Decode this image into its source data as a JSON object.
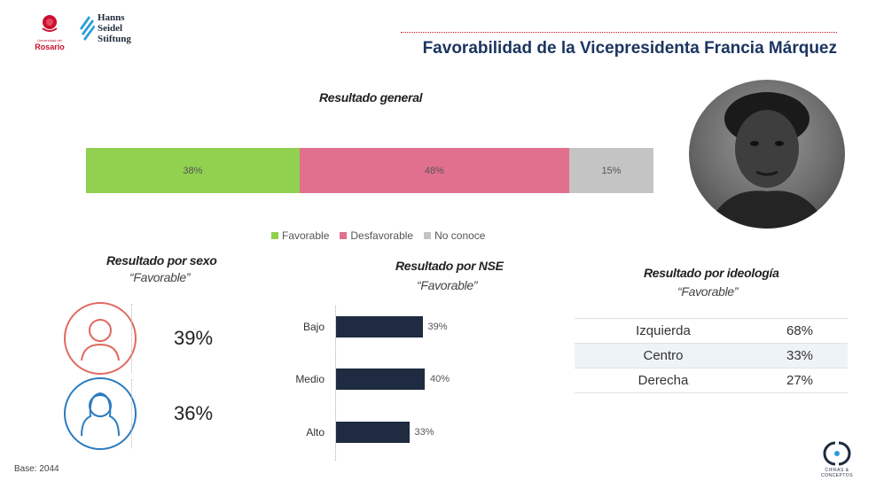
{
  "header": {
    "logo_rosario_small": "Universidad del",
    "logo_rosario_big": "Rosario",
    "logo_hss_lines": [
      "Hanns",
      "Seidel",
      "Stiftung"
    ],
    "title": "Favorabilidad de la Vicepresidenta Francia Márquez",
    "accent_color": "#c8102e",
    "title_color": "#1c3560"
  },
  "general": {
    "title": "Resultado general"
  },
  "sexo": {
    "title": "Resultado por sexo",
    "subtitle": "“Favorable”"
  },
  "nse": {
    "title": "Resultado por NSE",
    "subtitle": "“Favorable”"
  },
  "ideologia": {
    "title": "Resultado por ideología",
    "subtitle": "“Favorable”"
  },
  "chart_data": [
    {
      "type": "bar",
      "stacked": true,
      "orientation": "horizontal",
      "title": "Resultado general",
      "series": [
        {
          "name": "Favorable",
          "value": 38,
          "label": "38%",
          "color": "#92d050"
        },
        {
          "name": "Desfavorable",
          "value": 48,
          "label": "48%",
          "color": "#e0708e"
        },
        {
          "name": "No conoce",
          "value": 15,
          "label": "15%",
          "color": "#c4c4c4"
        }
      ],
      "legend": "bottom-center"
    },
    {
      "type": "table",
      "title": "Resultado por sexo",
      "categories": [
        "male-icon",
        "female-icon"
      ],
      "values": [
        39,
        36
      ],
      "labels": [
        "39%",
        "36%"
      ],
      "colors": [
        "#e06a60",
        "#2a7bbf"
      ]
    },
    {
      "type": "bar",
      "orientation": "horizontal",
      "title": "Resultado por NSE",
      "categories": [
        "Bajo",
        "Medio",
        "Alto"
      ],
      "values": [
        39,
        40,
        33
      ],
      "labels": [
        "39%",
        "40%",
        "33%"
      ],
      "color": "#1e2b40",
      "grid": false
    },
    {
      "type": "table",
      "title": "Resultado por ideología",
      "rows": [
        {
          "category": "Izquierda",
          "value": "68%"
        },
        {
          "category": "Centro",
          "value": "33%"
        },
        {
          "category": "Derecha",
          "value": "27%"
        }
      ]
    }
  ],
  "footer": {
    "base": "Base: 2044",
    "logo_cc_text": "CIFRAS & CONCEPTOS"
  }
}
